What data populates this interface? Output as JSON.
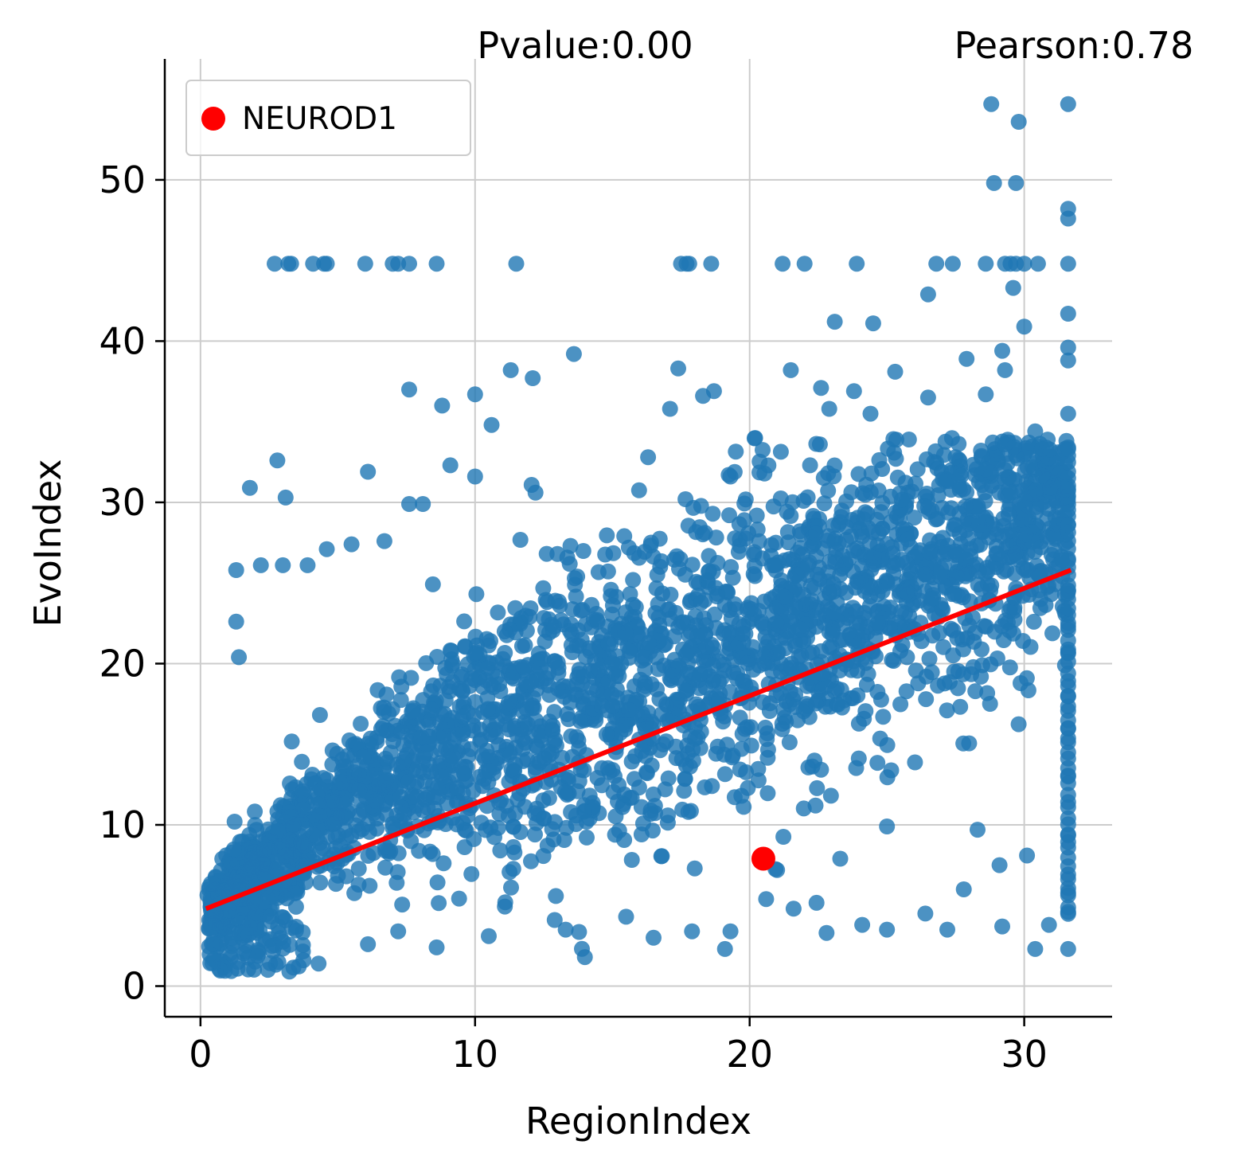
{
  "chart_data": {
    "type": "scatter",
    "xlabel": "RegionIndex",
    "ylabel": "EvoIndex",
    "xlim": [
      -1.3,
      33.2
    ],
    "ylim": [
      -1.9,
      57.5
    ],
    "xticks": [
      0,
      10,
      20,
      30
    ],
    "yticks": [
      0,
      10,
      20,
      30,
      40,
      50
    ],
    "grid": true,
    "annotations": {
      "pvalue": "Pvalue:0.00",
      "pearson": "Pearson:0.78"
    },
    "colors": {
      "points": "#1f77b4",
      "highlight": "#ff0000",
      "regression": "#ff0000",
      "grid": "#cccccc"
    },
    "legend": {
      "placement": "top-left",
      "entries": [
        {
          "label": "NEUROD1",
          "color": "#ff0000"
        }
      ]
    },
    "highlight_point": {
      "name": "NEUROD1",
      "x": 20.5,
      "y": 7.9
    },
    "regression_line": {
      "x": [
        0.2,
        31.7
      ],
      "y": [
        4.8,
        25.8
      ]
    },
    "cloud_model": {
      "count": 2600,
      "slope": 0.667,
      "intercept": 4.8,
      "sd_min": 0.8,
      "sd_max": 4.5
    },
    "series": [
      {
        "name": "genes",
        "points": [
          [
            2.7,
            44.8
          ],
          [
            3.2,
            44.8
          ],
          [
            3.3,
            44.8
          ],
          [
            4.1,
            44.8
          ],
          [
            4.5,
            44.8
          ],
          [
            4.6,
            44.8
          ],
          [
            6.0,
            44.8
          ],
          [
            7.0,
            44.8
          ],
          [
            7.2,
            44.8
          ],
          [
            7.6,
            44.8
          ],
          [
            8.6,
            44.8
          ],
          [
            11.5,
            44.8
          ],
          [
            17.5,
            44.8
          ],
          [
            17.7,
            44.8
          ],
          [
            17.8,
            44.8
          ],
          [
            18.6,
            44.8
          ],
          [
            21.2,
            44.8
          ],
          [
            22.0,
            44.8
          ],
          [
            23.9,
            44.8
          ],
          [
            26.8,
            44.8
          ],
          [
            27.4,
            44.8
          ],
          [
            28.6,
            44.8
          ],
          [
            29.3,
            44.8
          ],
          [
            29.5,
            44.8
          ],
          [
            29.7,
            44.8
          ],
          [
            30.0,
            44.8
          ],
          [
            30.5,
            44.8
          ],
          [
            31.6,
            44.8
          ],
          [
            28.8,
            54.7
          ],
          [
            31.6,
            54.7
          ],
          [
            29.8,
            53.6
          ],
          [
            28.9,
            49.8
          ],
          [
            29.7,
            49.8
          ],
          [
            31.6,
            48.2
          ],
          [
            31.6,
            47.6
          ],
          [
            26.5,
            42.9
          ],
          [
            29.6,
            43.3
          ],
          [
            23.1,
            41.2
          ],
          [
            24.5,
            41.1
          ],
          [
            30.0,
            40.9
          ],
          [
            31.6,
            41.7
          ],
          [
            31.6,
            39.6
          ],
          [
            31.6,
            38.8
          ],
          [
            29.2,
            39.4
          ],
          [
            13.6,
            39.2
          ],
          [
            11.3,
            38.2
          ],
          [
            12.1,
            37.7
          ],
          [
            17.4,
            38.3
          ],
          [
            21.5,
            38.2
          ],
          [
            25.3,
            38.1
          ],
          [
            27.9,
            38.9
          ],
          [
            29.3,
            38.2
          ],
          [
            7.6,
            37.0
          ],
          [
            10.0,
            36.7
          ],
          [
            8.8,
            36.0
          ],
          [
            10.6,
            34.8
          ],
          [
            17.1,
            35.8
          ],
          [
            18.7,
            36.9
          ],
          [
            18.3,
            36.6
          ],
          [
            22.6,
            37.1
          ],
          [
            23.8,
            36.9
          ],
          [
            26.5,
            36.5
          ],
          [
            28.6,
            36.7
          ],
          [
            22.9,
            35.8
          ],
          [
            24.4,
            35.5
          ],
          [
            31.6,
            35.5
          ],
          [
            2.8,
            32.6
          ],
          [
            6.1,
            31.9
          ],
          [
            9.1,
            32.3
          ],
          [
            10.0,
            31.6
          ],
          [
            1.8,
            30.9
          ],
          [
            3.1,
            30.3
          ],
          [
            7.6,
            29.9
          ],
          [
            8.1,
            29.9
          ],
          [
            12.2,
            30.6
          ],
          [
            16.3,
            32.8
          ],
          [
            19.3,
            31.6
          ],
          [
            22.2,
            32.3
          ],
          [
            25.8,
            33.9
          ],
          [
            27.5,
            32.8
          ],
          [
            29.3,
            33.6
          ],
          [
            30.4,
            34.4
          ],
          [
            2.2,
            26.1
          ],
          [
            3.0,
            26.1
          ],
          [
            1.3,
            25.8
          ],
          [
            1.3,
            22.6
          ],
          [
            1.4,
            20.4
          ],
          [
            3.9,
            26.1
          ],
          [
            4.6,
            27.1
          ],
          [
            5.5,
            27.4
          ],
          [
            6.7,
            27.6
          ],
          [
            13.0,
            26.8
          ],
          [
            15.6,
            27.2
          ],
          [
            20.9,
            26.1
          ],
          [
            24.1,
            27.9
          ],
          [
            11.1,
            5.2
          ],
          [
            12.9,
            4.1
          ],
          [
            14.0,
            1.8
          ],
          [
            13.3,
            3.5
          ],
          [
            15.5,
            4.3
          ],
          [
            16.5,
            3.0
          ],
          [
            17.9,
            3.4
          ],
          [
            19.1,
            2.3
          ],
          [
            19.3,
            3.4
          ],
          [
            20.6,
            5.4
          ],
          [
            21.6,
            4.8
          ],
          [
            22.8,
            3.3
          ],
          [
            24.1,
            3.8
          ],
          [
            25.0,
            3.5
          ],
          [
            26.4,
            4.5
          ],
          [
            27.2,
            3.5
          ],
          [
            29.2,
            3.7
          ],
          [
            30.4,
            2.3
          ],
          [
            30.9,
            3.8
          ],
          [
            31.6,
            2.3
          ],
          [
            31.6,
            4.6
          ],
          [
            31.6,
            5.8
          ],
          [
            8.6,
            2.4
          ],
          [
            7.2,
            3.4
          ],
          [
            10.5,
            3.1
          ],
          [
            6.1,
            2.6
          ],
          [
            4.3,
            1.4
          ],
          [
            18.0,
            7.3
          ],
          [
            21.0,
            7.2
          ],
          [
            23.3,
            7.9
          ],
          [
            25.0,
            9.9
          ],
          [
            27.8,
            6.0
          ],
          [
            29.1,
            7.5
          ],
          [
            30.1,
            8.1
          ],
          [
            31.6,
            9.4
          ],
          [
            28.3,
            9.7
          ],
          [
            22.4,
            11.2
          ],
          [
            19.7,
            11.8
          ],
          [
            31.6,
            13.0
          ],
          [
            31.6,
            18.0
          ],
          [
            31.6,
            22.3
          ],
          [
            31.6,
            26.4
          ],
          [
            31.6,
            30.8
          ],
          [
            31.6,
            33.3
          ],
          [
            31.6,
            16.0
          ],
          [
            31.6,
            20.7
          ],
          [
            31.6,
            24.5
          ],
          [
            31.6,
            28.6
          ]
        ]
      }
    ]
  }
}
